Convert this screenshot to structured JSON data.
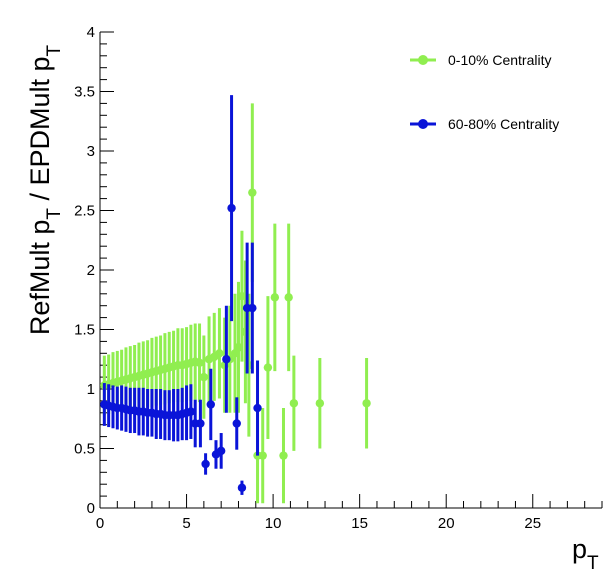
{
  "chart_data": {
    "type": "scatter",
    "title": "",
    "xlabel": "p_T",
    "ylabel": "RefMult p_T / EPDMult p_T",
    "xlim": [
      0,
      29
    ],
    "ylim": [
      0,
      4
    ],
    "xticks": [
      0,
      5,
      10,
      15,
      20,
      25
    ],
    "yticks": [
      0,
      0.5,
      1,
      1.5,
      2,
      2.5,
      3,
      3.5,
      4
    ],
    "grid": false,
    "legend_position": "top-right",
    "series": [
      {
        "name": "0-10% Centrality",
        "color": "#90ee50",
        "points": [
          {
            "x": 0.25,
            "y": 1.03,
            "err": 0.25
          },
          {
            "x": 0.5,
            "y": 1.04,
            "err": 0.25
          },
          {
            "x": 0.75,
            "y": 1.05,
            "err": 0.26
          },
          {
            "x": 1.0,
            "y": 1.06,
            "err": 0.26
          },
          {
            "x": 1.25,
            "y": 1.07,
            "err": 0.26
          },
          {
            "x": 1.5,
            "y": 1.08,
            "err": 0.27
          },
          {
            "x": 1.75,
            "y": 1.09,
            "err": 0.27
          },
          {
            "x": 2.0,
            "y": 1.1,
            "err": 0.27
          },
          {
            "x": 2.25,
            "y": 1.11,
            "err": 0.28
          },
          {
            "x": 2.5,
            "y": 1.12,
            "err": 0.28
          },
          {
            "x": 2.75,
            "y": 1.13,
            "err": 0.28
          },
          {
            "x": 3.0,
            "y": 1.14,
            "err": 0.29
          },
          {
            "x": 3.25,
            "y": 1.15,
            "err": 0.29
          },
          {
            "x": 3.5,
            "y": 1.16,
            "err": 0.29
          },
          {
            "x": 3.75,
            "y": 1.17,
            "err": 0.3
          },
          {
            "x": 4.0,
            "y": 1.18,
            "err": 0.3
          },
          {
            "x": 4.25,
            "y": 1.19,
            "err": 0.3
          },
          {
            "x": 4.5,
            "y": 1.2,
            "err": 0.31
          },
          {
            "x": 4.75,
            "y": 1.2,
            "err": 0.31
          },
          {
            "x": 5.0,
            "y": 1.21,
            "err": 0.31
          },
          {
            "x": 5.25,
            "y": 1.22,
            "err": 0.32
          },
          {
            "x": 5.5,
            "y": 1.23,
            "err": 0.32
          },
          {
            "x": 5.75,
            "y": 1.22,
            "err": 0.33
          },
          {
            "x": 6.0,
            "y": 1.1,
            "err": 0.35
          },
          {
            "x": 6.3,
            "y": 1.25,
            "err": 0.36
          },
          {
            "x": 6.6,
            "y": 1.27,
            "err": 0.37
          },
          {
            "x": 6.9,
            "y": 1.3,
            "err": 0.38
          },
          {
            "x": 7.2,
            "y": 1.2,
            "err": 0.4
          },
          {
            "x": 7.5,
            "y": 1.25,
            "err": 0.45
          },
          {
            "x": 7.8,
            "y": 1.3,
            "err": 0.5
          },
          {
            "x": 8.0,
            "y": 1.35,
            "err": 0.55
          },
          {
            "x": 8.2,
            "y": 1.78,
            "err": 0.55
          },
          {
            "x": 8.4,
            "y": 1.48,
            "err": 0.6
          },
          {
            "x": 8.6,
            "y": 1.2,
            "err": 0.6
          },
          {
            "x": 8.8,
            "y": 2.65,
            "err": 0.75
          },
          {
            "x": 9.1,
            "y": 0.44,
            "err": 0.4
          },
          {
            "x": 9.4,
            "y": 0.44,
            "err": 0.4
          },
          {
            "x": 9.7,
            "y": 1.18,
            "err": 0.6
          },
          {
            "x": 10.1,
            "y": 1.77,
            "err": 0.62
          },
          {
            "x": 10.6,
            "y": 0.44,
            "err": 0.4
          },
          {
            "x": 10.9,
            "y": 1.77,
            "err": 0.62
          },
          {
            "x": 11.2,
            "y": 0.88,
            "err": 0.4
          },
          {
            "x": 12.7,
            "y": 0.88,
            "err": 0.38
          },
          {
            "x": 15.4,
            "y": 0.88,
            "err": 0.38
          }
        ]
      },
      {
        "name": "60-80% Centrality",
        "color": "#0a14d8",
        "points": [
          {
            "x": 0.25,
            "y": 0.87,
            "err": 0.18
          },
          {
            "x": 0.5,
            "y": 0.86,
            "err": 0.18
          },
          {
            "x": 0.75,
            "y": 0.85,
            "err": 0.18
          },
          {
            "x": 1.0,
            "y": 0.84,
            "err": 0.18
          },
          {
            "x": 1.25,
            "y": 0.84,
            "err": 0.19
          },
          {
            "x": 1.5,
            "y": 0.83,
            "err": 0.19
          },
          {
            "x": 1.75,
            "y": 0.82,
            "err": 0.19
          },
          {
            "x": 2.0,
            "y": 0.82,
            "err": 0.19
          },
          {
            "x": 2.25,
            "y": 0.81,
            "err": 0.2
          },
          {
            "x": 2.5,
            "y": 0.81,
            "err": 0.2
          },
          {
            "x": 2.75,
            "y": 0.8,
            "err": 0.2
          },
          {
            "x": 3.0,
            "y": 0.8,
            "err": 0.2
          },
          {
            "x": 3.25,
            "y": 0.79,
            "err": 0.21
          },
          {
            "x": 3.5,
            "y": 0.79,
            "err": 0.21
          },
          {
            "x": 3.75,
            "y": 0.78,
            "err": 0.21
          },
          {
            "x": 4.0,
            "y": 0.78,
            "err": 0.21
          },
          {
            "x": 4.25,
            "y": 0.78,
            "err": 0.22
          },
          {
            "x": 4.5,
            "y": 0.78,
            "err": 0.22
          },
          {
            "x": 4.75,
            "y": 0.79,
            "err": 0.22
          },
          {
            "x": 5.0,
            "y": 0.8,
            "err": 0.23
          },
          {
            "x": 5.25,
            "y": 0.81,
            "err": 0.23
          },
          {
            "x": 5.5,
            "y": 0.71,
            "err": 0.2
          },
          {
            "x": 5.8,
            "y": 0.71,
            "err": 0.2
          },
          {
            "x": 6.1,
            "y": 0.37,
            "err": 0.09
          },
          {
            "x": 6.4,
            "y": 0.87,
            "err": 0.3
          },
          {
            "x": 6.7,
            "y": 0.45,
            "err": 0.12
          },
          {
            "x": 7.0,
            "y": 0.48,
            "err": 0.15
          },
          {
            "x": 7.3,
            "y": 1.25,
            "err": 0.45
          },
          {
            "x": 7.6,
            "y": 2.52,
            "err": 0.95
          },
          {
            "x": 7.9,
            "y": 0.71,
            "err": 0.22
          },
          {
            "x": 8.2,
            "y": 0.17,
            "err": 0.06
          },
          {
            "x": 8.5,
            "y": 1.68,
            "err": 0.55
          },
          {
            "x": 8.8,
            "y": 1.68,
            "err": 0.55
          },
          {
            "x": 9.1,
            "y": 0.84,
            "err": 0.4
          }
        ]
      }
    ]
  }
}
